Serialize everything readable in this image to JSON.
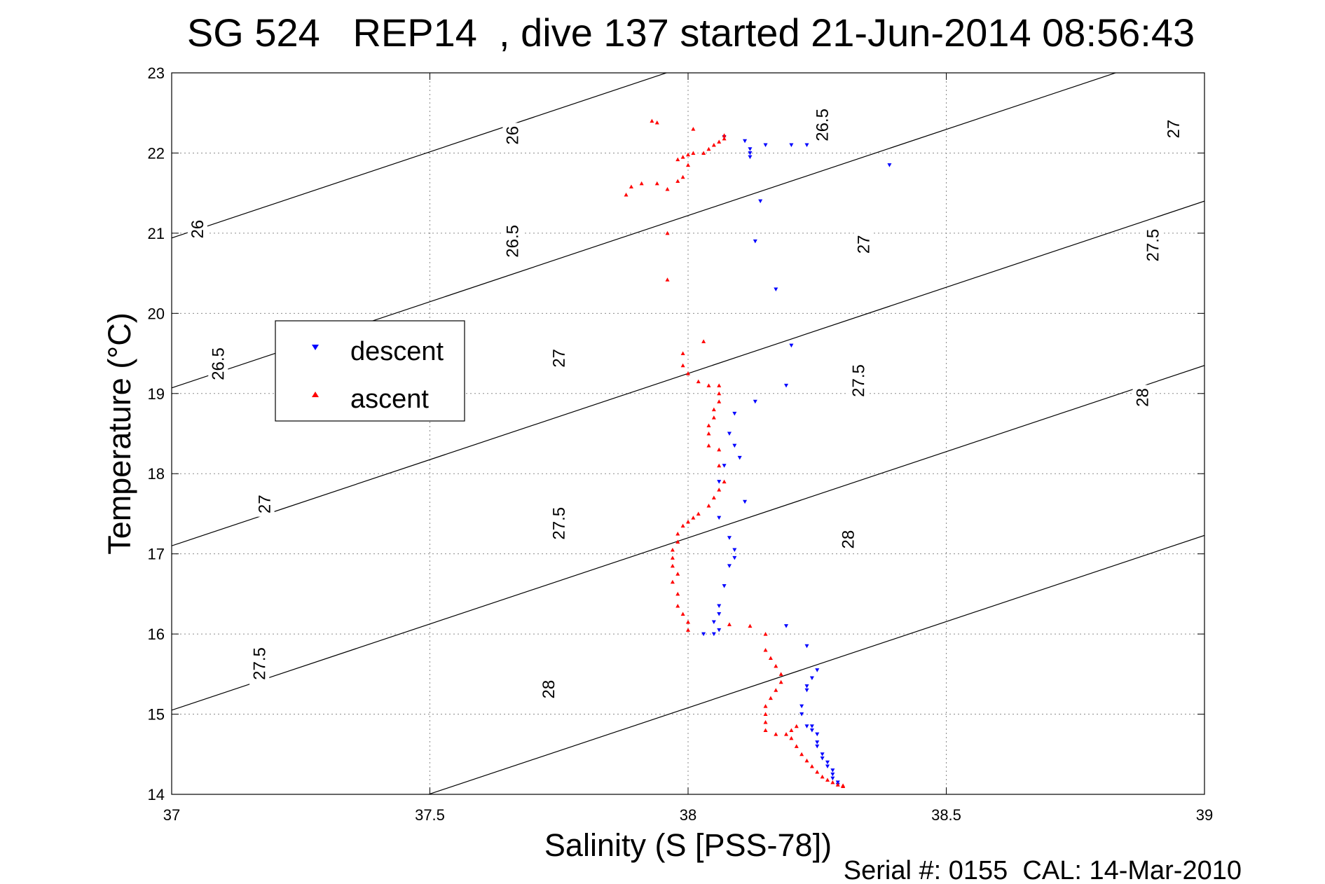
{
  "chart_data": {
    "type": "scatter",
    "title": "SG 524   REP14  , dive 137 started 21-Jun-2014 08:56:43",
    "xlabel": "Salinity (S [PSS-78])",
    "ylabel": "Temperature (°C)",
    "xlim": [
      37,
      39
    ],
    "ylim": [
      14,
      23
    ],
    "xticks": [
      "37",
      "37.5",
      "38",
      "38.5",
      "39"
    ],
    "yticks": [
      "14",
      "15",
      "16",
      "17",
      "18",
      "19",
      "20",
      "21",
      "22",
      "23"
    ],
    "grid": true,
    "legend_position": "left",
    "footer": "Serial #: 0155  CAL: 14-Mar-2010",
    "density_contours": [
      {
        "level": "26",
        "x": [
          37,
          39
        ],
        "y": [
          20.94,
          25.24
        ]
      },
      {
        "level": "26.5",
        "x": [
          37,
          39
        ],
        "y": [
          19.07,
          23.37
        ]
      },
      {
        "level": "27",
        "x": [
          37,
          39
        ],
        "y": [
          17.1,
          21.4
        ]
      },
      {
        "level": "27.5",
        "x": [
          37,
          39
        ],
        "y": [
          15.05,
          19.35
        ]
      },
      {
        "level": "28",
        "x": [
          37,
          39
        ],
        "y": [
          12.93,
          17.23
        ]
      }
    ],
    "contour_labels": [
      {
        "text": "26",
        "x": 37.66,
        "y": 22.22
      },
      {
        "text": "26.5",
        "x": 38.26,
        "y": 22.35
      },
      {
        "text": "27",
        "x": 38.94,
        "y": 22.3
      },
      {
        "text": "26",
        "x": 37.05,
        "y": 21.05
      },
      {
        "text": "26.5",
        "x": 37.66,
        "y": 20.9
      },
      {
        "text": "27",
        "x": 38.34,
        "y": 20.86
      },
      {
        "text": "27.5",
        "x": 38.9,
        "y": 20.85
      },
      {
        "text": "26.5",
        "x": 37.09,
        "y": 19.37
      },
      {
        "text": "27",
        "x": 37.75,
        "y": 19.44
      },
      {
        "text": "27.5",
        "x": 38.33,
        "y": 19.16
      },
      {
        "text": "28",
        "x": 38.88,
        "y": 18.95
      },
      {
        "text": "27",
        "x": 37.18,
        "y": 17.62
      },
      {
        "text": "27.5",
        "x": 37.75,
        "y": 17.38
      },
      {
        "text": "28",
        "x": 38.31,
        "y": 17.18
      },
      {
        "text": "27.5",
        "x": 37.17,
        "y": 15.63
      },
      {
        "text": "28",
        "x": 37.73,
        "y": 15.31
      }
    ],
    "series": [
      {
        "name": "descent",
        "color": "#0000ff",
        "marker": "triangle-down",
        "points": [
          [
            38.07,
            22.2
          ],
          [
            38.11,
            22.15
          ],
          [
            38.12,
            22.05
          ],
          [
            38.12,
            21.95
          ],
          [
            38.12,
            22.0
          ],
          [
            38.15,
            22.1
          ],
          [
            38.2,
            22.1
          ],
          [
            38.23,
            22.1
          ],
          [
            38.39,
            21.85
          ],
          [
            38.14,
            21.4
          ],
          [
            38.13,
            20.9
          ],
          [
            38.17,
            20.3
          ],
          [
            38.2,
            19.6
          ],
          [
            38.19,
            19.1
          ],
          [
            38.13,
            18.9
          ],
          [
            38.09,
            18.75
          ],
          [
            38.08,
            18.5
          ],
          [
            38.09,
            18.35
          ],
          [
            38.1,
            18.2
          ],
          [
            38.07,
            18.1
          ],
          [
            38.06,
            17.9
          ],
          [
            38.11,
            17.65
          ],
          [
            38.06,
            17.45
          ],
          [
            38.08,
            17.2
          ],
          [
            38.09,
            17.05
          ],
          [
            38.09,
            16.95
          ],
          [
            38.08,
            16.85
          ],
          [
            38.07,
            16.6
          ],
          [
            38.06,
            16.35
          ],
          [
            38.06,
            16.25
          ],
          [
            38.05,
            16.15
          ],
          [
            38.06,
            16.05
          ],
          [
            38.05,
            16.0
          ],
          [
            38.03,
            16.0
          ],
          [
            38.19,
            16.1
          ],
          [
            38.23,
            15.85
          ],
          [
            38.25,
            15.55
          ],
          [
            38.24,
            15.45
          ],
          [
            38.23,
            15.35
          ],
          [
            38.23,
            15.3
          ],
          [
            38.22,
            15.1
          ],
          [
            38.22,
            15.0
          ],
          [
            38.23,
            14.85
          ],
          [
            38.24,
            14.85
          ],
          [
            38.24,
            14.8
          ],
          [
            38.25,
            14.75
          ],
          [
            38.25,
            14.65
          ],
          [
            38.25,
            14.6
          ],
          [
            38.26,
            14.5
          ],
          [
            38.26,
            14.45
          ],
          [
            38.27,
            14.4
          ],
          [
            38.27,
            14.35
          ],
          [
            38.28,
            14.3
          ],
          [
            38.28,
            14.25
          ],
          [
            38.28,
            14.2
          ],
          [
            38.29,
            14.15
          ],
          [
            38.29,
            14.12
          ]
        ]
      },
      {
        "name": "ascent",
        "color": "#ff0000",
        "marker": "triangle-up",
        "points": [
          [
            37.93,
            22.4
          ],
          [
            37.94,
            22.38
          ],
          [
            38.01,
            22.3
          ],
          [
            38.07,
            22.22
          ],
          [
            38.07,
            22.18
          ],
          [
            38.06,
            22.14
          ],
          [
            38.05,
            22.1
          ],
          [
            38.04,
            22.05
          ],
          [
            38.03,
            22.0
          ],
          [
            38.01,
            22.0
          ],
          [
            38.0,
            21.98
          ],
          [
            37.99,
            21.95
          ],
          [
            37.98,
            21.92
          ],
          [
            38.0,
            21.85
          ],
          [
            37.99,
            21.7
          ],
          [
            37.98,
            21.65
          ],
          [
            37.94,
            21.62
          ],
          [
            37.91,
            21.62
          ],
          [
            37.89,
            21.58
          ],
          [
            37.88,
            21.48
          ],
          [
            37.96,
            21.55
          ],
          [
            37.96,
            21.0
          ],
          [
            37.96,
            20.42
          ],
          [
            38.03,
            19.65
          ],
          [
            37.99,
            19.5
          ],
          [
            37.99,
            19.35
          ],
          [
            38.0,
            19.25
          ],
          [
            38.02,
            19.15
          ],
          [
            38.04,
            19.1
          ],
          [
            38.06,
            19.1
          ],
          [
            38.06,
            19.0
          ],
          [
            38.06,
            18.9
          ],
          [
            38.05,
            18.8
          ],
          [
            38.05,
            18.7
          ],
          [
            38.04,
            18.6
          ],
          [
            38.04,
            18.5
          ],
          [
            38.04,
            18.35
          ],
          [
            38.06,
            18.3
          ],
          [
            38.06,
            18.1
          ],
          [
            38.07,
            17.9
          ],
          [
            38.06,
            17.8
          ],
          [
            38.05,
            17.7
          ],
          [
            38.04,
            17.6
          ],
          [
            38.02,
            17.5
          ],
          [
            38.01,
            17.45
          ],
          [
            38.0,
            17.4
          ],
          [
            37.99,
            17.35
          ],
          [
            37.98,
            17.25
          ],
          [
            37.98,
            17.15
          ],
          [
            37.97,
            17.05
          ],
          [
            37.97,
            16.95
          ],
          [
            37.97,
            16.85
          ],
          [
            37.98,
            16.75
          ],
          [
            37.97,
            16.65
          ],
          [
            37.98,
            16.5
          ],
          [
            37.98,
            16.35
          ],
          [
            37.99,
            16.25
          ],
          [
            38.0,
            16.15
          ],
          [
            38.0,
            16.05
          ],
          [
            38.08,
            16.12
          ],
          [
            38.12,
            16.1
          ],
          [
            38.15,
            16.0
          ],
          [
            38.15,
            15.8
          ],
          [
            38.16,
            15.7
          ],
          [
            38.17,
            15.6
          ],
          [
            38.18,
            15.5
          ],
          [
            38.18,
            15.4
          ],
          [
            38.17,
            15.3
          ],
          [
            38.16,
            15.2
          ],
          [
            38.15,
            15.1
          ],
          [
            38.15,
            15.0
          ],
          [
            38.15,
            14.9
          ],
          [
            38.15,
            14.8
          ],
          [
            38.17,
            14.75
          ],
          [
            38.19,
            14.75
          ],
          [
            38.2,
            14.8
          ],
          [
            38.21,
            14.85
          ],
          [
            38.2,
            14.7
          ],
          [
            38.21,
            14.6
          ],
          [
            38.22,
            14.5
          ],
          [
            38.23,
            14.42
          ],
          [
            38.24,
            14.35
          ],
          [
            38.25,
            14.28
          ],
          [
            38.26,
            14.22
          ],
          [
            38.27,
            14.18
          ],
          [
            38.28,
            14.15
          ],
          [
            38.29,
            14.12
          ],
          [
            38.3,
            14.11
          ],
          [
            38.3,
            14.1
          ]
        ]
      }
    ]
  }
}
